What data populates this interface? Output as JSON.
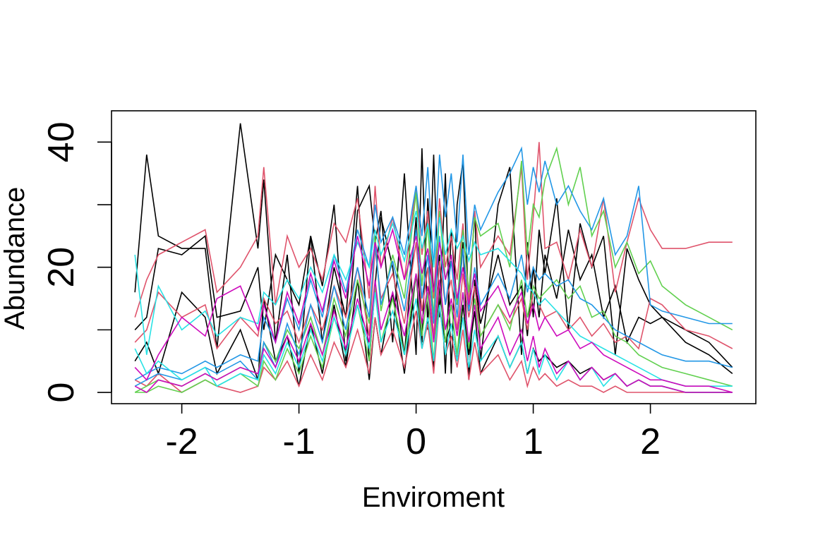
{
  "chart_data": {
    "type": "line",
    "title": "",
    "xlabel": "Enviroment",
    "ylabel": "Abundance",
    "xlim": [
      -2.6,
      2.9
    ],
    "ylim": [
      -1.8,
      45
    ],
    "x_ticks": [
      -2,
      -1,
      0,
      1,
      2
    ],
    "y_ticks": [
      0,
      20,
      40
    ],
    "y_minor_ticks": [
      0,
      10,
      20,
      30,
      40
    ],
    "grid": false,
    "legend": "none",
    "palette": [
      "#000000",
      "#DF536B",
      "#61D04F",
      "#2297E6",
      "#28E2E5",
      "#CD0BBC"
    ],
    "x": [
      -2.4,
      -2.3,
      -2.2,
      -2.0,
      -1.8,
      -1.7,
      -1.5,
      -1.35,
      -1.3,
      -1.2,
      -1.1,
      -1.0,
      -0.9,
      -0.8,
      -0.7,
      -0.6,
      -0.5,
      -0.4,
      -0.35,
      -0.3,
      -0.2,
      -0.1,
      0.0,
      0.05,
      0.1,
      0.15,
      0.2,
      0.25,
      0.3,
      0.35,
      0.4,
      0.45,
      0.5,
      0.55,
      0.7,
      0.8,
      0.9,
      0.95,
      1.0,
      1.05,
      1.1,
      1.2,
      1.3,
      1.4,
      1.5,
      1.6,
      1.7,
      1.8,
      1.9,
      2.0,
      2.1,
      2.3,
      2.5,
      2.7
    ],
    "series": [
      {
        "color": "#000000",
        "values": [
          16,
          38,
          25,
          23,
          23,
          7,
          43,
          23,
          34,
          8,
          22,
          3,
          25,
          17,
          30,
          5,
          29,
          33,
          24,
          29,
          8,
          35,
          6,
          39,
          10,
          38,
          12,
          35,
          3,
          30,
          37,
          13,
          29,
          5,
          30,
          36,
          6,
          24,
          12,
          26,
          19,
          31,
          10,
          27,
          20,
          25,
          6,
          23,
          18,
          14,
          12,
          10,
          8,
          4
        ]
      },
      {
        "color": "#000000",
        "values": [
          10,
          12,
          23,
          22,
          25,
          12,
          13,
          20,
          10,
          22,
          18,
          14,
          25,
          8,
          20,
          12,
          33,
          5,
          17,
          28,
          20,
          6,
          28,
          8,
          31,
          16,
          22,
          3,
          26,
          14,
          24,
          2,
          18,
          11,
          22,
          14,
          17,
          9,
          20,
          12,
          22,
          15,
          26,
          18,
          22,
          12,
          17,
          8,
          12,
          11,
          12,
          8,
          6,
          3
        ]
      },
      {
        "color": "#000000",
        "values": [
          5,
          8,
          3,
          16,
          12,
          3,
          10,
          2,
          15,
          5,
          9,
          1,
          11,
          3,
          14,
          4,
          18,
          2,
          12,
          6,
          16,
          3,
          19,
          7,
          12,
          4,
          17,
          8,
          11,
          5,
          14,
          6,
          13,
          3,
          9,
          4,
          8,
          3,
          7,
          5,
          6,
          4,
          5,
          3,
          4,
          2,
          3,
          1,
          2,
          1,
          1,
          0,
          0,
          0
        ]
      },
      {
        "color": "#DF536B",
        "values": [
          12,
          18,
          22,
          24,
          26,
          16,
          20,
          25,
          36,
          14,
          25,
          20,
          23,
          18,
          27,
          24,
          31,
          15,
          33,
          20,
          28,
          18,
          33,
          22,
          29,
          15,
          31,
          20,
          25,
          18,
          27,
          14,
          29,
          20,
          25,
          22,
          36,
          18,
          28,
          40,
          23,
          24,
          18,
          26,
          20,
          31,
          16,
          24,
          31,
          26,
          23,
          23,
          24,
          24
        ]
      },
      {
        "color": "#DF536B",
        "values": [
          8,
          10,
          16,
          12,
          14,
          7,
          12,
          9,
          15,
          11,
          13,
          8,
          14,
          10,
          17,
          12,
          20,
          9,
          23,
          15,
          19,
          11,
          24,
          13,
          20,
          9,
          21,
          14,
          18,
          10,
          19,
          12,
          17,
          9,
          14,
          11,
          15,
          10,
          16,
          14,
          12,
          13,
          10,
          12,
          9,
          11,
          8,
          9,
          7,
          15,
          14,
          10,
          9,
          7
        ]
      },
      {
        "color": "#DF536B",
        "values": [
          2,
          1,
          3,
          0,
          2,
          1,
          0,
          1,
          4,
          2,
          5,
          1,
          6,
          2,
          8,
          4,
          10,
          3,
          12,
          6,
          10,
          4,
          13,
          7,
          11,
          3,
          14,
          6,
          9,
          4,
          10,
          2,
          8,
          3,
          6,
          2,
          5,
          1,
          4,
          2,
          3,
          1,
          2,
          1,
          1,
          0,
          1,
          0,
          0,
          0,
          0,
          0,
          0,
          0
        ]
      },
      {
        "color": "#61D04F",
        "values": [
          0,
          1,
          2,
          1,
          3,
          2,
          4,
          3,
          8,
          5,
          10,
          7,
          12,
          6,
          15,
          9,
          18,
          11,
          25,
          13,
          22,
          15,
          32,
          17,
          27,
          12,
          29,
          18,
          22,
          14,
          26,
          16,
          28,
          25,
          27,
          20,
          37,
          22,
          30,
          28,
          34,
          39,
          30,
          36,
          25,
          29,
          20,
          24,
          19,
          21,
          17,
          14,
          12,
          10
        ]
      },
      {
        "color": "#61D04F",
        "values": [
          0,
          0,
          1,
          0,
          2,
          1,
          3,
          1,
          5,
          2,
          7,
          3,
          9,
          4,
          12,
          6,
          14,
          5,
          17,
          8,
          15,
          6,
          19,
          9,
          16,
          5,
          18,
          8,
          14,
          6,
          16,
          7,
          15,
          9,
          14,
          10,
          18,
          12,
          17,
          15,
          16,
          18,
          15,
          17,
          12,
          13,
          9,
          8,
          6,
          5,
          4,
          3,
          2,
          1
        ]
      },
      {
        "color": "#2297E6",
        "values": [
          2,
          3,
          4,
          3,
          5,
          4,
          6,
          5,
          12,
          8,
          15,
          10,
          18,
          12,
          22,
          16,
          26,
          20,
          30,
          24,
          28,
          22,
          33,
          25,
          36,
          20,
          38,
          28,
          35,
          24,
          38,
          22,
          30,
          26,
          32,
          35,
          39,
          30,
          36,
          32,
          37,
          30,
          33,
          29,
          26,
          31,
          22,
          25,
          33,
          14,
          13,
          12,
          11,
          11
        ]
      },
      {
        "color": "#2297E6",
        "values": [
          1,
          2,
          3,
          2,
          4,
          3,
          5,
          2,
          8,
          4,
          11,
          6,
          14,
          8,
          17,
          10,
          20,
          12,
          24,
          14,
          21,
          13,
          26,
          15,
          22,
          11,
          25,
          14,
          21,
          12,
          23,
          13,
          20,
          14,
          19,
          15,
          22,
          16,
          20,
          18,
          19,
          17,
          18,
          15,
          14,
          12,
          10,
          9,
          8,
          7,
          6,
          5,
          5,
          4
        ]
      },
      {
        "color": "#28E2E5",
        "values": [
          22,
          6,
          17,
          10,
          13,
          9,
          12,
          11,
          16,
          14,
          18,
          15,
          20,
          16,
          22,
          18,
          24,
          20,
          26,
          22,
          27,
          21,
          29,
          23,
          27,
          20,
          28,
          22,
          26,
          23,
          25,
          21,
          24,
          22,
          23,
          21,
          19,
          17,
          16,
          14,
          15,
          13,
          11,
          9,
          8,
          7,
          6,
          5,
          4,
          3,
          2,
          1,
          1,
          1
        ]
      },
      {
        "color": "#28E2E5",
        "values": [
          7,
          3,
          5,
          2,
          4,
          1,
          3,
          2,
          6,
          3,
          8,
          4,
          10,
          5,
          12,
          6,
          14,
          7,
          16,
          8,
          13,
          6,
          15,
          7,
          12,
          5,
          14,
          6,
          11,
          5,
          12,
          4,
          10,
          5,
          9,
          4,
          8,
          3,
          7,
          3,
          6,
          2,
          5,
          2,
          4,
          1,
          3,
          1,
          2,
          1,
          1,
          0,
          0,
          0
        ]
      },
      {
        "color": "#CD0BBC",
        "values": [
          4,
          2,
          6,
          12,
          9,
          15,
          17,
          10,
          14,
          8,
          16,
          11,
          19,
          13,
          21,
          15,
          25,
          17,
          24,
          20,
          26,
          18,
          25,
          19,
          23,
          16,
          24,
          18,
          22,
          15,
          20,
          14,
          19,
          13,
          17,
          12,
          16,
          11,
          14,
          10,
          12,
          9,
          10,
          7,
          8,
          6,
          5,
          4,
          3,
          2,
          2,
          1,
          1,
          0
        ]
      },
      {
        "color": "#CD0BBC",
        "values": [
          1,
          0,
          2,
          1,
          3,
          2,
          4,
          3,
          7,
          4,
          9,
          5,
          11,
          6,
          13,
          7,
          15,
          8,
          18,
          10,
          16,
          9,
          19,
          11,
          17,
          8,
          18,
          10,
          15,
          9,
          16,
          8,
          14,
          7,
          12,
          6,
          10,
          5,
          9,
          4,
          7,
          3,
          5,
          2,
          4,
          2,
          3,
          1,
          2,
          1,
          1,
          0,
          0,
          0
        ]
      }
    ]
  }
}
